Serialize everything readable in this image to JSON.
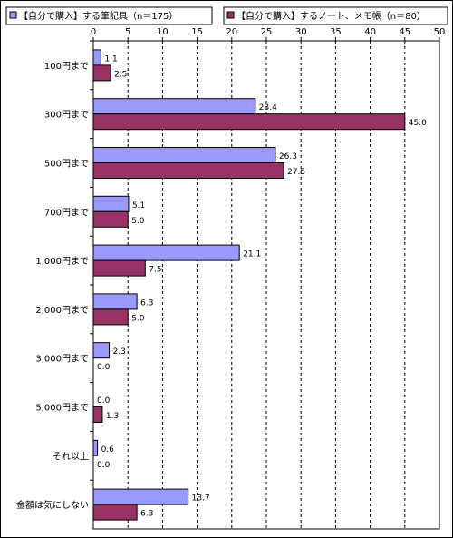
{
  "chart_data": {
    "type": "bar",
    "orientation": "horizontal",
    "title": "",
    "xlabel": "",
    "ylabel": "",
    "xlim": [
      0,
      50
    ],
    "x_ticks": [
      0,
      5,
      10,
      15,
      20,
      25,
      30,
      35,
      40,
      45,
      50
    ],
    "grid": "vertical dashed",
    "legend_position": "top",
    "categories": [
      "100円まで",
      "300円まで",
      "500円まで",
      "700円まで",
      "1,000円まで",
      "2,000円まで",
      "3,000円まで",
      "5,000円まで",
      "それ以上",
      "金額は気にしない"
    ],
    "series": [
      {
        "name": "【自分で購入】する筆記具（n＝175）",
        "color": "#9999ff",
        "values": [
          1.1,
          23.4,
          26.3,
          5.1,
          21.1,
          6.3,
          2.3,
          0.0,
          0.6,
          13.7
        ],
        "labels": [
          "1.1",
          "23.4",
          "26.3",
          "5.1",
          "21.1",
          "6.3",
          "2.3",
          "0.0",
          "0.6",
          "13.7"
        ]
      },
      {
        "name": "【自分で購入】するノート、メモ帳（n＝80）",
        "color": "#993366",
        "values": [
          2.5,
          45.0,
          27.5,
          5.0,
          7.5,
          5.0,
          0.0,
          1.3,
          0.0,
          6.3
        ],
        "labels": [
          "2.5",
          "45.0",
          "27.5",
          "5.0",
          "7.5",
          "5.0",
          "0.0",
          "1.3",
          "0.0",
          "6.3"
        ]
      }
    ]
  }
}
